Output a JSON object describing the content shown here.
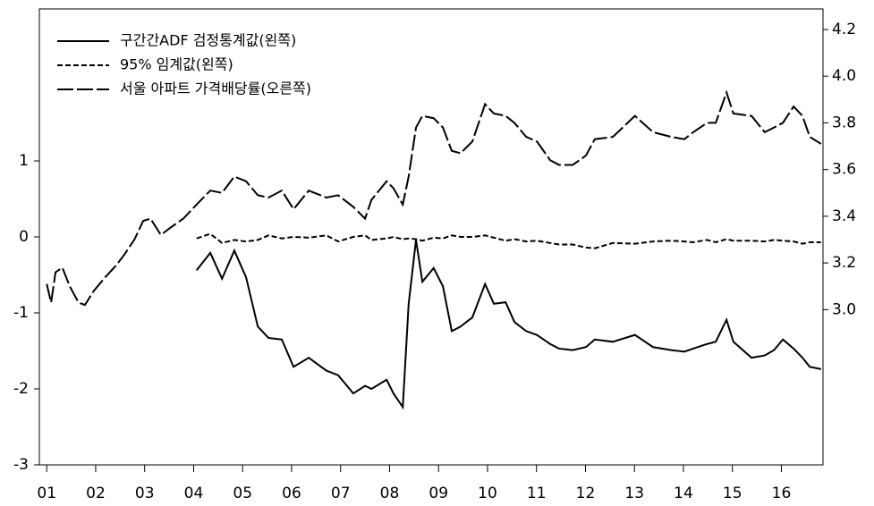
{
  "chart_data": {
    "type": "line",
    "x": [
      2001.0,
      2001.09,
      2001.18,
      2001.32,
      2001.47,
      2001.65,
      2001.78,
      2001.96,
      2002.2,
      2002.42,
      2002.6,
      2002.79,
      2002.97,
      2003.12,
      2003.33,
      2003.52,
      2003.79,
      2004.06,
      2004.34,
      2004.58,
      2004.83,
      2005.07,
      2005.31,
      2005.53,
      2005.8,
      2006.04,
      2006.35,
      2006.71,
      2006.95,
      2007.26,
      2007.5,
      2007.63,
      2007.94,
      2008.08,
      2008.27,
      2008.39,
      2008.54,
      2008.67,
      2008.9,
      2009.09,
      2009.27,
      2009.45,
      2009.69,
      2009.95,
      2010.13,
      2010.37,
      2010.55,
      2010.79,
      2011.01,
      2011.28,
      2011.46,
      2011.74,
      2012.01,
      2012.19,
      2012.56,
      2013.01,
      2013.38,
      2013.75,
      2014.02,
      2014.2,
      2014.48,
      2014.66,
      2014.88,
      2015.02,
      2015.39,
      2015.66,
      2015.85,
      2016.03,
      2016.25,
      2016.43,
      2016.58,
      2016.81
    ],
    "series": [
      {
        "name": "구간간ADF 검정통계값(왼쪽)",
        "color": "#000000",
        "dash": "solid",
        "values": [
          null,
          null,
          null,
          null,
          null,
          null,
          null,
          null,
          null,
          null,
          null,
          null,
          null,
          null,
          null,
          null,
          null,
          -0.44,
          -0.21,
          -0.55,
          -0.18,
          -0.53,
          -1.18,
          -1.33,
          -1.35,
          -1.71,
          -1.59,
          -1.76,
          -1.82,
          -2.06,
          -1.96,
          -2.0,
          -1.88,
          -2.06,
          -2.24,
          -0.88,
          -0.04,
          -0.59,
          -0.41,
          -0.65,
          -1.24,
          -1.18,
          -1.06,
          -0.62,
          -0.88,
          -0.86,
          -1.12,
          -1.24,
          -1.29,
          -1.41,
          -1.47,
          -1.49,
          -1.45,
          -1.35,
          -1.38,
          -1.29,
          -1.45,
          -1.49,
          -1.51,
          -1.47,
          -1.41,
          -1.38,
          -1.09,
          -1.38,
          -1.59,
          -1.56,
          -1.49,
          -1.35,
          -1.47,
          -1.59,
          -1.71,
          -1.74
        ]
      },
      {
        "name": "95% 임계값(왼쪽)",
        "color": "#000000",
        "dash": "dash",
        "values": [
          null,
          null,
          null,
          null,
          null,
          null,
          null,
          null,
          null,
          null,
          null,
          null,
          null,
          null,
          null,
          null,
          null,
          -0.02,
          0.04,
          -0.08,
          -0.04,
          -0.06,
          -0.04,
          0.02,
          -0.02,
          0.0,
          -0.01,
          0.02,
          -0.06,
          0.0,
          0.02,
          -0.04,
          -0.02,
          0.0,
          -0.03,
          -0.02,
          -0.03,
          -0.05,
          -0.01,
          -0.02,
          0.02,
          0.0,
          0.0,
          0.02,
          -0.01,
          -0.05,
          -0.03,
          -0.06,
          -0.05,
          -0.08,
          -0.1,
          -0.1,
          -0.14,
          -0.15,
          -0.08,
          -0.09,
          -0.06,
          -0.05,
          -0.06,
          -0.07,
          -0.04,
          -0.07,
          -0.03,
          -0.05,
          -0.05,
          -0.06,
          -0.04,
          -0.05,
          -0.06,
          -0.09,
          -0.07,
          -0.07
        ]
      },
      {
        "name": "서울 아파트 가격배당률(오른쪽)",
        "color": "#000000",
        "dash": "longdash",
        "axis": "y2",
        "values": [
          3.11,
          3.03,
          3.16,
          3.18,
          3.1,
          3.03,
          3.02,
          3.08,
          3.14,
          3.19,
          3.24,
          3.3,
          3.38,
          3.39,
          3.32,
          3.35,
          3.39,
          3.45,
          3.51,
          3.5,
          3.57,
          3.55,
          3.49,
          3.48,
          3.51,
          3.43,
          3.51,
          3.48,
          3.49,
          3.44,
          3.39,
          3.47,
          3.55,
          3.52,
          3.45,
          3.57,
          3.78,
          3.83,
          3.82,
          3.78,
          3.68,
          3.67,
          3.72,
          3.88,
          3.84,
          3.83,
          3.8,
          3.74,
          3.72,
          3.64,
          3.62,
          3.62,
          3.66,
          3.73,
          3.74,
          3.83,
          3.76,
          3.74,
          3.73,
          3.76,
          3.8,
          3.8,
          3.93,
          3.84,
          3.83,
          3.76,
          3.78,
          3.8,
          3.87,
          3.83,
          3.74,
          3.71
        ]
      }
    ],
    "xlim": [
      2000.85,
      2016.85
    ],
    "xticks": [
      {
        "value": 2001,
        "label": "01"
      },
      {
        "value": 2002,
        "label": "02"
      },
      {
        "value": 2003,
        "label": "03"
      },
      {
        "value": 2004,
        "label": "04"
      },
      {
        "value": 2005,
        "label": "05"
      },
      {
        "value": 2006,
        "label": "06"
      },
      {
        "value": 2007,
        "label": "07"
      },
      {
        "value": 2008,
        "label": "08"
      },
      {
        "value": 2009,
        "label": "09"
      },
      {
        "value": 2010,
        "label": "10"
      },
      {
        "value": 2011,
        "label": "11"
      },
      {
        "value": 2012,
        "label": "12"
      },
      {
        "value": 2013,
        "label": "13"
      },
      {
        "value": 2014,
        "label": "14"
      },
      {
        "value": 2015,
        "label": "15"
      },
      {
        "value": 2016,
        "label": "16"
      }
    ],
    "ylim": [
      -3,
      3
    ],
    "yticks": [
      -3,
      -2,
      -1,
      0,
      1
    ],
    "y2lim": [
      2.335,
      4.288
    ],
    "y2ticks": [
      {
        "value": 3,
        "label": "3.0"
      },
      3.2,
      3.4,
      3.6,
      3.8,
      {
        "value": 4,
        "label": "4.0"
      },
      4.2
    ],
    "legend": "top-left"
  }
}
